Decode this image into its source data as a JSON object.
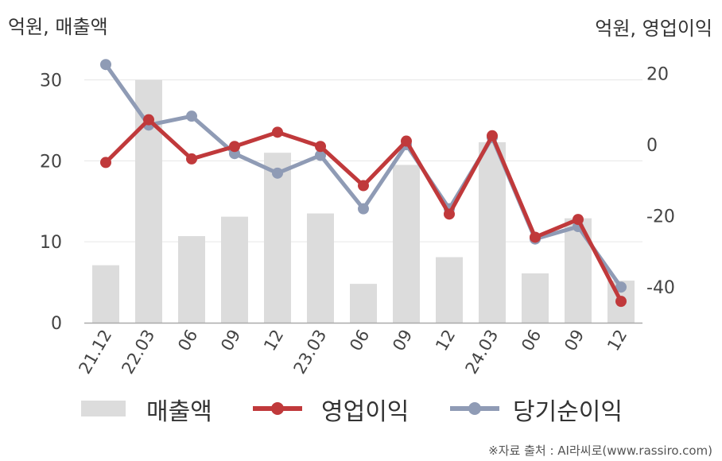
{
  "chart_data": {
    "type": "bar+line",
    "categories": [
      "21.12",
      "22.03",
      "06",
      "09",
      "12",
      "23.03",
      "06",
      "09",
      "12",
      "24.03",
      "06",
      "09",
      "12"
    ],
    "left_axis": {
      "title": "억원, 매출액",
      "ylim": [
        0,
        33
      ],
      "ticks": [
        0,
        10,
        20,
        30
      ]
    },
    "right_axis": {
      "title": "억원, 영업이익",
      "ylim": [
        -50,
        25
      ],
      "ticks": [
        -40,
        -20,
        0,
        20
      ]
    },
    "series": [
      {
        "name": "매출액",
        "kind": "bar",
        "axis": "left",
        "color": "#dcdcdc",
        "values": [
          7.1,
          30.0,
          10.7,
          13.1,
          21.0,
          13.5,
          4.8,
          19.5,
          8.1,
          22.3,
          6.1,
          12.9,
          5.2
        ]
      },
      {
        "name": "영업이익",
        "kind": "line",
        "axis": "right",
        "color": "#c0393b",
        "values": [
          -5,
          7,
          -4,
          -0.5,
          3.5,
          -0.5,
          -11.5,
          1,
          -19.5,
          2.5,
          -26,
          -21,
          -44
        ]
      },
      {
        "name": "당기순이익",
        "kind": "line",
        "axis": "right",
        "color": "#8f9bb5",
        "values": [
          22.5,
          5.5,
          8,
          -2.5,
          -8,
          -3,
          -18,
          0,
          -18,
          2,
          -26.5,
          -23,
          -40
        ]
      }
    ],
    "grid": true,
    "legend_position": "bottom"
  },
  "source_text": "※자료 출처 : AI라씨로(www.rassiro.com)"
}
